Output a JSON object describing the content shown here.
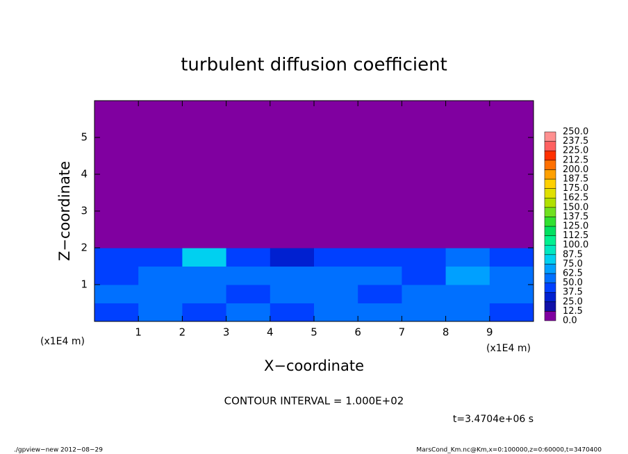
{
  "chart_data": {
    "type": "heatmap",
    "title": "turbulent diffusion coefficient",
    "x_label": "X−coordinate",
    "y_label": "Z−coordinate",
    "x_unit": "(x1E4 m)",
    "y_unit": "(x1E4 m)",
    "annotation": "CONTOUR INTERVAL = 1.000E+02",
    "time_label": "t=3.4704e+06 s",
    "footer_left": "./gpview−new   2012−08−29",
    "footer_right": "MarsCond_Km.nc@Km,x=0:100000,z=0:60000,t=3470400",
    "xlim": [
      0,
      10
    ],
    "ylim": [
      0,
      6
    ],
    "xticks": [
      1,
      2,
      3,
      4,
      5,
      6,
      7,
      8,
      9
    ],
    "yticks": [
      1,
      2,
      3,
      4,
      5
    ],
    "x": [
      0.5,
      1.5,
      2.5,
      3.5,
      4.5,
      5.5,
      6.5,
      7.5,
      8.5,
      9.5
    ],
    "y": [
      0.25,
      0.75,
      1.25,
      1.75,
      2.25,
      2.75,
      3.25,
      3.75,
      4.25,
      4.75,
      5.25,
      5.75
    ],
    "z": [
      [
        45,
        50,
        45,
        50,
        45,
        55,
        50,
        60,
        55,
        45
      ],
      [
        50,
        55,
        50,
        45,
        55,
        60,
        45,
        55,
        60,
        50
      ],
      [
        45,
        50,
        55,
        50,
        50,
        55,
        50,
        45,
        65,
        50
      ],
      [
        40,
        45,
        75,
        45,
        35,
        40,
        40,
        45,
        55,
        45
      ],
      [
        0,
        0,
        0,
        0,
        0,
        0,
        0,
        0,
        0,
        0
      ],
      [
        0,
        0,
        0,
        0,
        0,
        0,
        0,
        0,
        0,
        0
      ],
      [
        0,
        0,
        0,
        0,
        0,
        0,
        0,
        0,
        0,
        0
      ],
      [
        0,
        0,
        0,
        0,
        0,
        0,
        0,
        0,
        0,
        0
      ],
      [
        0,
        0,
        0,
        0,
        0,
        0,
        0,
        0,
        0,
        0
      ],
      [
        0,
        0,
        0,
        0,
        0,
        0,
        0,
        0,
        0,
        0
      ],
      [
        0,
        0,
        0,
        0,
        0,
        0,
        0,
        0,
        0,
        0
      ],
      [
        0,
        0,
        0,
        0,
        0,
        0,
        0,
        0,
        0,
        0
      ]
    ],
    "levels": [
      {
        "value": 0,
        "label": "0.0"
      },
      12.5,
      {
        "value": 25,
        "label": "25.0"
      },
      37.5,
      {
        "value": 50,
        "label": "50.0"
      },
      62.5,
      {
        "value": 75,
        "label": "75.0"
      },
      87.5,
      {
        "value": 100,
        "label": "100.0"
      },
      112.5,
      {
        "value": 125,
        "label": "125.0"
      },
      137.5,
      {
        "value": 150,
        "label": "150.0"
      },
      162.5,
      {
        "value": 175,
        "label": "175.0"
      },
      187.5,
      {
        "value": 200,
        "label": "200.0"
      },
      212.5,
      {
        "value": 225,
        "label": "225.0"
      },
      237.5,
      {
        "value": 250,
        "label": "250.0"
      }
    ],
    "colors": [
      "#8000a0",
      "#1010a8",
      "#0020d0",
      "#0040ff",
      "#0070ff",
      "#00a0ff",
      "#00d0f0",
      "#00e8c0",
      "#00f090",
      "#00e060",
      "#30e030",
      "#70e020",
      "#b0e000",
      "#e0e000",
      "#ffd000",
      "#ffa000",
      "#ff7000",
      "#ff3000",
      "#ff6060",
      "#ff9090"
    ]
  }
}
